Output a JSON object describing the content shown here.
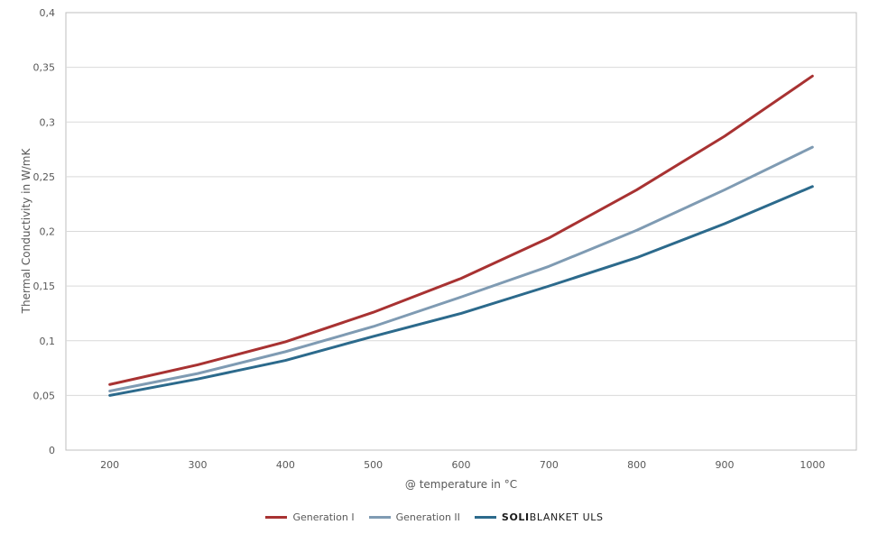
{
  "chart_data": {
    "type": "line",
    "title": "",
    "xlabel": "@ temperature in °C",
    "ylabel": "Thermal Conductivity in W/mK",
    "categories": [
      "200",
      "300",
      "400",
      "500",
      "600",
      "700",
      "800",
      "900",
      "1000"
    ],
    "ylim": [
      0,
      0.4
    ],
    "yticks": [
      "0",
      "0,05",
      "0,1",
      "0,15",
      "0,2",
      "0,25",
      "0,3",
      "0,35",
      "0,4"
    ],
    "grid": true,
    "legend_position": "bottom",
    "series": [
      {
        "name": "Generation I",
        "color": "#a83232",
        "values": [
          0.06,
          0.078,
          0.099,
          0.126,
          0.157,
          0.194,
          0.238,
          0.287,
          0.342
        ]
      },
      {
        "name": "Generation II",
        "color": "#7f9bb3",
        "values": [
          0.054,
          0.07,
          0.09,
          0.113,
          0.14,
          0.168,
          0.201,
          0.238,
          0.277
        ]
      },
      {
        "name": "SOLIBLANKET ULS",
        "color": "#2c6a8c",
        "values": [
          0.05,
          0.065,
          0.082,
          0.104,
          0.125,
          0.15,
          0.176,
          0.207,
          0.241
        ]
      }
    ]
  },
  "legend": {
    "gen1": "Generation I",
    "gen2": "Generation II",
    "brand_bold": "SOLI",
    "brand_rest": "BLANKET ULS"
  }
}
